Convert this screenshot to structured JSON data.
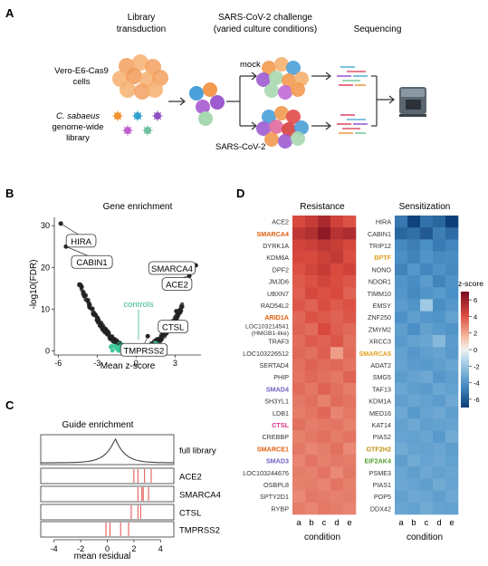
{
  "panels": {
    "A": {
      "label": "A",
      "step1_title": [
        "Library",
        "transduction"
      ],
      "step2_title": [
        "SARS-CoV-2 challenge",
        "(varied culture conditions)"
      ],
      "step3_title": "Sequencing",
      "cells_label": [
        "Vero-E6-Cas9",
        "cells"
      ],
      "library_label_italic": "C. sabaeus",
      "library_label": [
        "genome-wide",
        "library"
      ],
      "mock_label": "mock",
      "sars_label": "SARS-CoV-2"
    },
    "B": {
      "label": "B",
      "title": "Gene enrichment",
      "ylabel": "-log10(FDR)",
      "xlabel": "Mean z-score",
      "x_ticks": [
        "-6",
        "-3",
        "0",
        "3"
      ],
      "y_ticks": [
        "0",
        "10",
        "20",
        "30"
      ],
      "controls_label": "controls",
      "gene_labels": [
        "HIRA",
        "CABIN1",
        "SMARCA4",
        "ACE2",
        "CTSL",
        "TMPRSS2"
      ]
    },
    "C": {
      "label": "C",
      "title": "Guide enrichment",
      "xlabel": "mean residual",
      "x_ticks": [
        "-4",
        "-2",
        "0",
        "2",
        "4"
      ],
      "rows": [
        "full library",
        "ACE2",
        "SMARCA4",
        "CTSL",
        "TMPRSS2"
      ]
    },
    "D": {
      "label": "D",
      "resistance_title": "Resistance",
      "sensitization_title": "Sensitization",
      "conditions": [
        "a",
        "b",
        "c",
        "d",
        "e"
      ],
      "xlabel": "condition",
      "colorbar_title": "z-score",
      "colorbar_ticks": [
        "6",
        "4",
        "2",
        "0",
        "-2",
        "-4",
        "-6"
      ],
      "resistance_genes": [
        {
          "name": "ACE2",
          "color": "#333333"
        },
        {
          "name": "SMARCA4",
          "color": "#e06010"
        },
        {
          "name": "DYRK1A",
          "color": "#333333"
        },
        {
          "name": "KDM6A",
          "color": "#333333"
        },
        {
          "name": "DPF2",
          "color": "#333333"
        },
        {
          "name": "JMJD6",
          "color": "#333333"
        },
        {
          "name": "UBXN7",
          "color": "#333333"
        },
        {
          "name": "RAD54L2",
          "color": "#333333"
        },
        {
          "name": "ARID1A",
          "color": "#e06010"
        },
        {
          "name": "LOC103214541\n(HMGB1-like)",
          "color": "#333333"
        },
        {
          "name": "TRAF3",
          "color": "#333333"
        },
        {
          "name": "LOC103226512",
          "color": "#333333"
        },
        {
          "name": "SERTAD4",
          "color": "#333333"
        },
        {
          "name": "PHIP",
          "color": "#333333"
        },
        {
          "name": "SMAD4",
          "color": "#7060c0"
        },
        {
          "name": "SH3YL1",
          "color": "#333333"
        },
        {
          "name": "LDB1",
          "color": "#333333"
        },
        {
          "name": "CTSL",
          "color": "#e0308a"
        },
        {
          "name": "CREBBP",
          "color": "#333333"
        },
        {
          "name": "SMARCE1",
          "color": "#e06010"
        },
        {
          "name": "SMAD3",
          "color": "#7060c0"
        },
        {
          "name": "LOC103244676",
          "color": "#333333"
        },
        {
          "name": "OSBPL8",
          "color": "#333333"
        },
        {
          "name": "SPTY2D1",
          "color": "#333333"
        },
        {
          "name": "RYBP",
          "color": "#333333"
        }
      ],
      "sensitization_genes": [
        {
          "name": "HIRA",
          "color": "#333333"
        },
        {
          "name": "CABIN1",
          "color": "#333333"
        },
        {
          "name": "TRIP12",
          "color": "#333333"
        },
        {
          "name": "BPTF",
          "color": "#e0a020"
        },
        {
          "name": "NONO",
          "color": "#333333"
        },
        {
          "name": "NDOR1",
          "color": "#333333"
        },
        {
          "name": "TIMM10",
          "color": "#333333"
        },
        {
          "name": "EMSY",
          "color": "#333333"
        },
        {
          "name": "ZNF250",
          "color": "#333333"
        },
        {
          "name": "ZMYM2",
          "color": "#333333"
        },
        {
          "name": "XRCC3",
          "color": "#333333"
        },
        {
          "name": "SMARCA5",
          "color": "#e0a020"
        },
        {
          "name": "ADAT2",
          "color": "#333333"
        },
        {
          "name": "SMG5",
          "color": "#333333"
        },
        {
          "name": "TAF13",
          "color": "#333333"
        },
        {
          "name": "KDM1A",
          "color": "#333333"
        },
        {
          "name": "MED16",
          "color": "#333333"
        },
        {
          "name": "KAT14",
          "color": "#333333"
        },
        {
          "name": "PIAS2",
          "color": "#333333"
        },
        {
          "name": "GTF2H2",
          "color": "#c09010"
        },
        {
          "name": "EIF2AK4",
          "color": "#50a030"
        },
        {
          "name": "PSME3",
          "color": "#333333"
        },
        {
          "name": "PIAS1",
          "color": "#333333"
        },
        {
          "name": "POP5",
          "color": "#333333"
        },
        {
          "name": "DDX42",
          "color": "#333333"
        }
      ],
      "resistance_values": [
        [
          4.2,
          4.8,
          5.6,
          4.5,
          4.0
        ],
        [
          5.0,
          5.4,
          6.4,
          5.2,
          5.5
        ],
        [
          4.4,
          4.6,
          5.0,
          4.7,
          4.3
        ],
        [
          4.3,
          4.2,
          4.6,
          4.9,
          4.1
        ],
        [
          4.0,
          4.4,
          4.8,
          4.2,
          4.5
        ],
        [
          3.8,
          4.0,
          4.4,
          4.1,
          3.9
        ],
        [
          3.7,
          4.3,
          4.0,
          4.2,
          3.6
        ],
        [
          3.9,
          3.6,
          4.1,
          3.8,
          4.0
        ],
        [
          3.5,
          4.0,
          3.8,
          3.6,
          3.9
        ],
        [
          3.6,
          3.4,
          4.2,
          3.7,
          3.5
        ],
        [
          3.4,
          3.8,
          3.6,
          3.9,
          3.3
        ],
        [
          3.5,
          3.3,
          3.7,
          2.2,
          3.4
        ],
        [
          3.3,
          3.6,
          3.4,
          3.5,
          3.2
        ],
        [
          3.2,
          3.5,
          3.3,
          3.1,
          3.6
        ],
        [
          3.4,
          3.1,
          3.6,
          3.3,
          3.0
        ],
        [
          3.1,
          3.3,
          2.9,
          3.4,
          3.2
        ],
        [
          3.0,
          3.2,
          3.5,
          2.8,
          3.1
        ],
        [
          3.3,
          3.0,
          3.1,
          3.2,
          2.9
        ],
        [
          2.9,
          3.1,
          3.3,
          3.0,
          3.2
        ],
        [
          3.1,
          2.8,
          3.0,
          3.3,
          2.7
        ],
        [
          2.8,
          3.2,
          2.9,
          3.1,
          3.0
        ],
        [
          3.0,
          2.9,
          3.2,
          2.7,
          3.1
        ],
        [
          2.9,
          3.0,
          2.8,
          3.2,
          2.9
        ],
        [
          2.7,
          3.1,
          3.0,
          2.9,
          3.0
        ],
        [
          3.0,
          2.8,
          3.1,
          3.0,
          2.8
        ]
      ],
      "sensitization_values": [
        [
          -5.0,
          -6.8,
          -5.2,
          -5.6,
          -6.9
        ],
        [
          -5.6,
          -5.3,
          -6.0,
          -4.8,
          -5.4
        ],
        [
          -4.4,
          -4.8,
          -4.2,
          -4.9,
          -4.5
        ],
        [
          -4.2,
          -4.6,
          -4.0,
          -4.4,
          -4.3
        ],
        [
          -4.6,
          -3.9,
          -4.5,
          -4.1,
          -4.4
        ],
        [
          -4.0,
          -4.3,
          -3.7,
          -4.6,
          -4.1
        ],
        [
          -3.9,
          -4.4,
          -4.0,
          -3.8,
          -4.2
        ],
        [
          -3.7,
          -4.0,
          -1.8,
          -4.3,
          -3.9
        ],
        [
          -4.1,
          -3.6,
          -3.9,
          -4.0,
          -3.5
        ],
        [
          -3.6,
          -4.2,
          -3.5,
          -3.8,
          -4.0
        ],
        [
          -3.8,
          -3.5,
          -3.3,
          -2.5,
          -3.7
        ],
        [
          -3.5,
          -3.9,
          -3.6,
          -3.4,
          -3.8
        ],
        [
          -3.4,
          -3.7,
          -3.8,
          -3.6,
          -3.3
        ],
        [
          -3.7,
          -3.4,
          -3.2,
          -3.9,
          -3.6
        ],
        [
          -3.3,
          -3.6,
          -3.7,
          -3.3,
          -3.5
        ],
        [
          -3.6,
          -3.3,
          -3.5,
          -3.7,
          -3.2
        ],
        [
          -3.2,
          -3.8,
          -3.4,
          -3.2,
          -3.6
        ],
        [
          -3.5,
          -3.2,
          -3.6,
          -3.5,
          -3.4
        ],
        [
          -3.4,
          -3.5,
          -3.3,
          -3.8,
          -3.1
        ],
        [
          -3.1,
          -3.4,
          -3.5,
          -3.3,
          -3.6
        ],
        [
          -3.6,
          -3.1,
          -3.4,
          -3.2,
          -3.5
        ],
        [
          -3.3,
          -3.6,
          -3.2,
          -3.5,
          -3.3
        ],
        [
          -3.2,
          -3.4,
          -3.6,
          -3.1,
          -3.4
        ],
        [
          -3.5,
          -3.2,
          -3.3,
          -3.6,
          -3.2
        ],
        [
          -3.3,
          -3.5,
          -3.1,
          -3.4,
          -3.5
        ]
      ]
    }
  },
  "chart_data": [
    {
      "type": "scatter",
      "title": "Gene enrichment",
      "xlabel": "Mean z-score",
      "ylabel": "-log10(FDR)",
      "xlim": [
        -6.3,
        5.0
      ],
      "ylim": [
        -1,
        32
      ],
      "labeled_points": [
        {
          "name": "HIRA",
          "x": -5.8,
          "y": 30.5
        },
        {
          "name": "CABIN1",
          "x": -5.4,
          "y": 25.0
        },
        {
          "name": "SMARCA4",
          "x": 4.6,
          "y": 20.5
        },
        {
          "name": "ACE2",
          "x": 4.1,
          "y": 18.0
        },
        {
          "name": "CTSL",
          "x": 3.1,
          "y": 9.5
        },
        {
          "name": "TMPRSS2",
          "x": 0.9,
          "y": 3.5
        }
      ],
      "controls_range": [
        -2.0,
        2.0
      ]
    },
    {
      "type": "other",
      "title": "Guide enrichment",
      "xlabel": "mean residual",
      "xlim": [
        -5,
        5
      ],
      "full_library_peak": 0.6,
      "guides": {
        "ACE2": [
          2.0,
          2.3,
          2.8,
          3.3
        ],
        "SMARCA4": [
          2.3,
          2.6,
          2.7,
          3.1
        ],
        "CTSL": [
          1.8,
          2.3,
          2.5
        ],
        "TMPRSS2": [
          -0.1,
          0.2,
          1.0,
          1.6
        ]
      }
    },
    {
      "type": "heatmap",
      "title": "Resistance / Sensitization",
      "xlabel": "condition",
      "colorbar_range": [
        -7,
        7
      ]
    }
  ]
}
